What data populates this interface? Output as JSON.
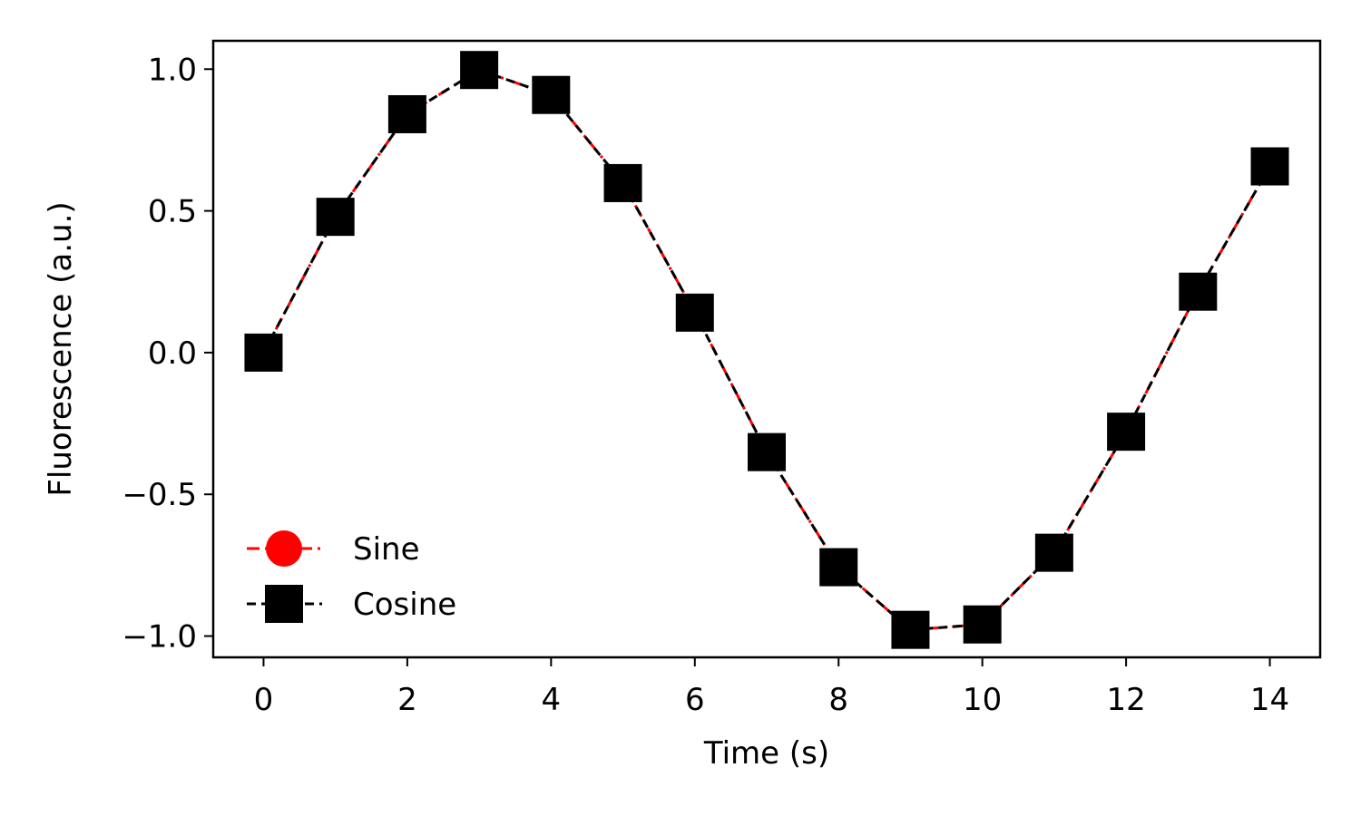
{
  "chart_data": {
    "type": "line",
    "title": "",
    "xlabel": "Time (s)",
    "ylabel": "Fluorescence (a.u.)",
    "xlim": [
      -0.7,
      14.7
    ],
    "ylim": [
      -1.075,
      1.1
    ],
    "x_ticks": [
      0,
      2,
      4,
      6,
      8,
      10,
      12,
      14
    ],
    "x_tick_labels": [
      "0",
      "2",
      "4",
      "6",
      "8",
      "10",
      "12",
      "14"
    ],
    "y_ticks": [
      1.0,
      0.5,
      0.0,
      -0.5,
      -1.0
    ],
    "y_tick_labels": [
      "1.0",
      "0.5",
      "0.0",
      "−0.5",
      "−1.0"
    ],
    "grid": false,
    "legend_position": "lower-left",
    "x": [
      0,
      1,
      2,
      3,
      4,
      5,
      6,
      7,
      8,
      9,
      10,
      11,
      12,
      13,
      14
    ],
    "series": [
      {
        "name": "Sine",
        "color": "#ff0000",
        "marker": "circle",
        "linestyle": "dash-dot",
        "values": [
          0.0,
          0.479,
          0.841,
          0.997,
          0.909,
          0.598,
          0.141,
          -0.351,
          -0.757,
          -0.978,
          -0.959,
          -0.706,
          -0.279,
          0.215,
          0.657
        ]
      },
      {
        "name": "Cosine",
        "color": "#000000",
        "marker": "square",
        "linestyle": "dashed",
        "values": [
          0.0,
          0.479,
          0.841,
          0.997,
          0.909,
          0.598,
          0.141,
          -0.351,
          -0.757,
          -0.978,
          -0.959,
          -0.706,
          -0.279,
          0.215,
          0.657
        ]
      }
    ]
  }
}
